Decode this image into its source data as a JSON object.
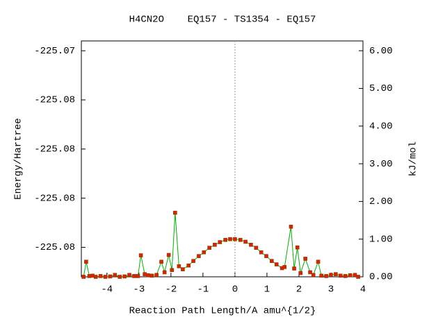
{
  "chart_data": {
    "type": "line",
    "title": "H4CN2O    EQ157 - TS1354 - EQ157",
    "x_label": "Reaction Path Length/A amu^{1/2}",
    "y_label": "Energy/Hartree",
    "y2_label": "kJ/mol",
    "xlim": [
      -4.8,
      4.0
    ],
    "xticks": [
      -4,
      -3,
      -2,
      -1,
      0,
      1,
      2,
      3,
      4
    ],
    "ylim": [
      -225.0771,
      -225.0747
    ],
    "yticks": [
      {
        "value": -225.0748,
        "label": "-225.07"
      },
      {
        "value": -225.0753,
        "label": "-225.08"
      },
      {
        "value": -225.0758,
        "label": "-225.08"
      },
      {
        "value": -225.0763,
        "label": "-225.08"
      },
      {
        "value": -225.0768,
        "label": "-225.08"
      }
    ],
    "y2lim": [
      0,
      6.26
    ],
    "y2ticks": [
      {
        "value": 0,
        "label": "0.00"
      },
      {
        "value": 1,
        "label": "1.00"
      },
      {
        "value": 2,
        "label": "2.00"
      },
      {
        "value": 3,
        "label": "3.00"
      },
      {
        "value": 4,
        "label": "4.00"
      },
      {
        "value": 5,
        "label": "5.00"
      },
      {
        "value": 6,
        "label": "6.00"
      }
    ],
    "vline": 0,
    "series": [
      {
        "color": "#00b000",
        "marker_color": "#e02000",
        "axis": "y2",
        "x": [
          -4.73,
          -4.65,
          -4.55,
          -4.45,
          -4.35,
          -4.2,
          -4.05,
          -3.9,
          -3.75,
          -3.6,
          -3.45,
          -3.3,
          -3.15,
          -3.03,
          -2.94,
          -2.82,
          -2.72,
          -2.6,
          -2.45,
          -2.3,
          -2.2,
          -2.07,
          -1.97,
          -1.87,
          -1.75,
          -1.63,
          -1.45,
          -1.3,
          -1.13,
          -0.97,
          -0.8,
          -0.63,
          -0.47,
          -0.3,
          -0.15,
          0,
          0.17,
          0.33,
          0.5,
          0.66,
          0.82,
          0.98,
          1.15,
          1.3,
          1.47,
          1.55,
          1.75,
          1.85,
          1.95,
          2.05,
          2.2,
          2.35,
          2.45,
          2.6,
          2.7,
          2.85,
          3.0,
          3.15,
          3.3,
          3.45,
          3.6,
          3.75,
          3.85
        ],
        "values": [
          0.0,
          0.4,
          0.02,
          0.03,
          0.0,
          0.02,
          0.0,
          0.01,
          0.05,
          0.0,
          0.01,
          0.05,
          0.02,
          0.02,
          0.57,
          0.07,
          0.04,
          0.03,
          0.05,
          0.4,
          0.12,
          0.58,
          0.18,
          1.7,
          0.28,
          0.2,
          0.3,
          0.42,
          0.55,
          0.65,
          0.77,
          0.85,
          0.92,
          0.98,
          1.0,
          1.0,
          0.98,
          0.93,
          0.85,
          0.77,
          0.65,
          0.55,
          0.42,
          0.33,
          0.23,
          0.26,
          1.33,
          0.22,
          0.78,
          0.1,
          0.48,
          0.12,
          0.05,
          0.4,
          0.03,
          0.02,
          0.05,
          0.07,
          0.03,
          0.02,
          0.04,
          0.05,
          0.0
        ]
      }
    ]
  }
}
